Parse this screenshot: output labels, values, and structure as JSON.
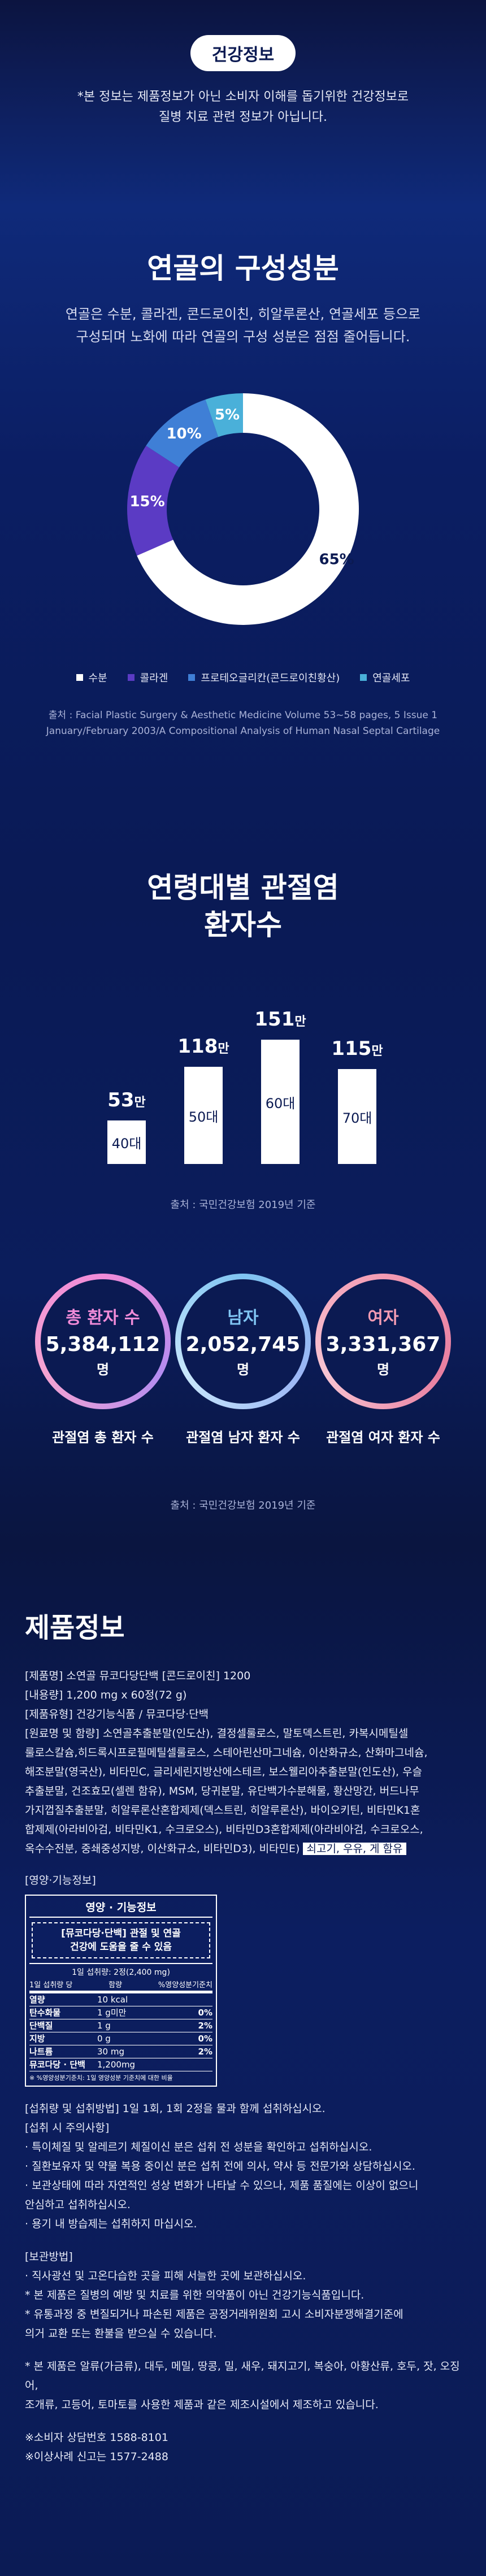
{
  "header": {
    "pill": "건강정보",
    "notice_line1": "*본 정보는 제품정보가 아닌 소비자 이해를 돕기위한 건강정보로",
    "notice_line2": "질병 치료 관련 정보가 아닙니다."
  },
  "composition": {
    "title": "연골의 구성성분",
    "desc_line1": "연골은 수분, 콜라겐, 콘드로이친, 히알루론산, 연골세포 등으로",
    "desc_line2": "구성되며 노화에 따라 연골의 구성 성분은 점점 줄어듭니다.",
    "source_line1": "출처 : Facial Plastic Surgery & Aesthetic Medicine Volume 53~58 pages, 5 Issue 1",
    "source_line2": "January/February 2003/A Compositional Analysis of Human Nasal Septal Cartilage"
  },
  "chart_data": [
    {
      "type": "pie",
      "categories": [
        "수분",
        "콜라겐",
        "프로테오글리칸(콘드로이친황산)",
        "연골세포"
      ],
      "values": [
        65,
        15,
        10,
        5
      ],
      "labels": [
        "65%",
        "15%",
        "10%",
        "5%"
      ],
      "colors": [
        "#ffffff",
        "#5b3bc4",
        "#3f7fd6",
        "#4ab0d9"
      ]
    },
    {
      "type": "bar",
      "categories": [
        "40대",
        "50대",
        "60대",
        "70대"
      ],
      "values": [
        53,
        118,
        151,
        115
      ],
      "value_labels": [
        "53만",
        "118만",
        "151만",
        "115만"
      ],
      "source": "출처 : 국민건강보험 2019년 기준"
    }
  ],
  "patients": {
    "items": [
      {
        "title": "총 환자 수",
        "num": "5,384,112",
        "unit": "명",
        "caption": "관절염 총 환자 수",
        "title_color": "#f08bd8"
      },
      {
        "title": "남자",
        "num": "2,052,745",
        "unit": "명",
        "caption": "관절염 남자 환자 수",
        "title_color": "#7fc4f2"
      },
      {
        "title": "여자",
        "num": "3,331,367",
        "unit": "명",
        "caption": "관절염 여자 환자 수",
        "title_color": "#f39bb3"
      }
    ],
    "source": "출처 : 국민건강보험 2019년 기준"
  },
  "product": {
    "title": "제품정보",
    "l1": "[제품명] 소연골 뮤코다당단백 [콘드로이친] 1200",
    "l2": "[내용량] 1,200 mg x 60정(72 g)",
    "l3": "[제품유형] 건강기능식품 / 뮤코다당·단백",
    "l4": "[원료명 및 함량] 소연골추출분말(인도산), 결정셀룰로스, 말토덱스트린, 카복시메틸셀",
    "l5": "룰로스칼슘,히드록시프로필메틸셀룰로스, 스테아린산마그네슘, 이산화규소, 산화마그네슘,",
    "l6": "해조분말(영국산), 비타민C, 글리세린지방산에스테르, 보스웰리아추출분말(인도산), 우슬",
    "l7": "추출분말, 건조효모(셀렌 함유), MSM, 당귀분말, 유단백가수분해물, 황산망간, 버드나무",
    "l8": "가지껍질추출분말, 히알루론산혼합제제(덱스트린, 히알루론산), 바이오키틴, 비타민K1혼",
    "l9": "합제제(아라비아검, 비타민K1, 수크로오스), 비타민D3혼합제제(아라비아검, 수크로오스,",
    "l10": "옥수수전분, 중쇄중성지방, 이산화규소, 비타민D3), 비타민E)",
    "allergy": "쇠고기, 우유, 게 함유",
    "nut_tag": "[영양·기능정보]"
  },
  "nutrition": {
    "title": "영양 · 기능정보",
    "claim_line1": "[뮤코다당·단백] 관절 및 연골",
    "claim_line2": "건강에 도움을 줄 수 있음",
    "serving": "1일 섭취량: 2정(2,400 mg)",
    "head_left": "1일 섭취량 당",
    "head_mid": "함량",
    "head_right": "%영양성분기준치",
    "rows": [
      {
        "n": "열량",
        "a": "10 kcal",
        "p": ""
      },
      {
        "n": "탄수화물",
        "a": "1 g미만",
        "p": "0%"
      },
      {
        "n": "단백질",
        "a": "1 g",
        "p": "2%"
      },
      {
        "n": "지방",
        "a": "0 g",
        "p": "0%"
      },
      {
        "n": "나트륨",
        "a": "30 mg",
        "p": "2%"
      },
      {
        "n": "뮤코다당 · 단백",
        "a": "1,200mg",
        "p": ""
      }
    ],
    "footnote": "※ %영양성분기준치: 1일 영양성분 기준치에 대한 비율"
  },
  "notes": {
    "n1": "[섭취량 및 섭취방법] 1일 1회, 1회 2정을 물과 함께 섭취하십시오.",
    "n2": "[섭취 시 주의사항]",
    "n3": "· 특이체질 및 알레르기 체질이신 분은 섭취 전 성분을 확인하고 섭취하십시오.",
    "n4": "· 질환보유자 및 약물 복용 중이신 분은 섭취 전에 의사, 약사 등 전문가와 상담하십시오.",
    "n5": "· 보관상태에 따라 자연적인 성상 변화가 나타날 수 있으나, 제품 품질에는 이상이 없으니",
    "n6": "  안심하고 섭취하십시오.",
    "n7": "· 용기 내 방습제는 섭취하지 마십시오.",
    "n8": "[보관방법]",
    "n9": "· 직사광선 및 고온다습한 곳을 피해 서늘한 곳에 보관하십시오.",
    "n10": "* 본 제품은 질병의 예방 및 치료를 위한 의약품이 아닌 건강기능식품입니다.",
    "n11": "* 유통과정 중 변질되거나 파손된 제품은 공정거래위원회 고시 소비자분쟁해결기준에",
    "n12": "  의거 교환 또는 환불을 받으실 수 있습니다.",
    "n13": "* 본 제품은 알류(가금류), 대두, 메밀, 땅콩, 밀, 새우, 돼지고기, 복숭아, 아황산류, 호두, 잣, 오징어,",
    "n14": "  조개류, 고등어, 토마토를 사용한 제품과 같은 제조시설에서 제조하고 있습니다.",
    "n15": "※소비자 상담번호 1588-8101",
    "n16": "※이상사례 신고는 1577-2488"
  }
}
